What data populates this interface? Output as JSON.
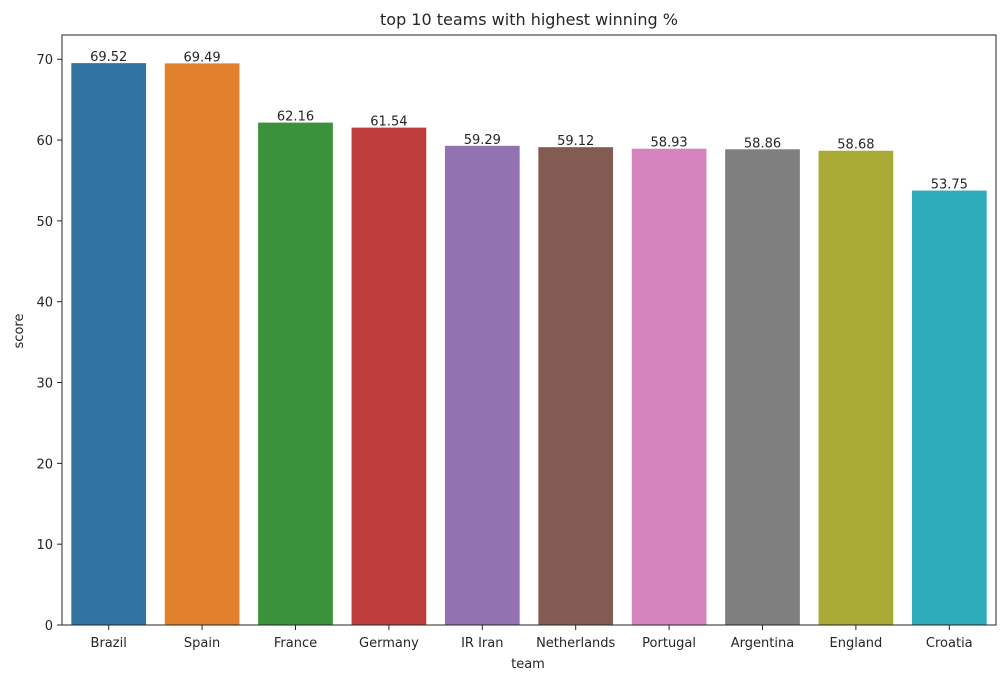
{
  "chart_data": {
    "type": "bar",
    "title": "top 10 teams with highest winning %",
    "xlabel": "team",
    "ylabel": "score",
    "ylim": [
      0,
      73
    ],
    "yticks": [
      0,
      10,
      20,
      30,
      40,
      50,
      60,
      70
    ],
    "categories": [
      "Brazil",
      "Spain",
      "France",
      "Germany",
      "IR Iran",
      "Netherlands",
      "Portugal",
      "Argentina",
      "England",
      "Croatia"
    ],
    "values": [
      69.52,
      69.49,
      62.16,
      61.54,
      59.29,
      59.12,
      58.93,
      58.86,
      58.68,
      53.75
    ],
    "data_labels": [
      "69.52",
      "69.49",
      "62.16",
      "61.54",
      "59.29",
      "59.12",
      "58.93",
      "58.86",
      "58.68",
      "53.75"
    ],
    "colors": [
      "#3274a1",
      "#e1812c",
      "#3a923a",
      "#c03d3e",
      "#9372b2",
      "#845b53",
      "#d684bd",
      "#7f7f7f",
      "#a9aa35",
      "#2eabb8"
    ],
    "grid": false,
    "legend": "none"
  }
}
